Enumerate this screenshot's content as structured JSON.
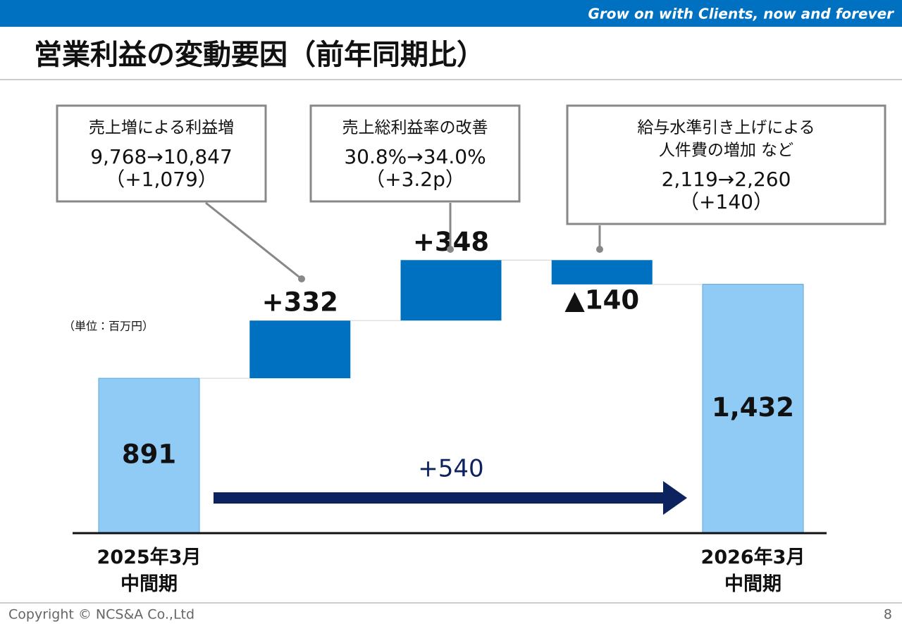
{
  "header": {
    "tagline": "Grow on with Clients, now and forever"
  },
  "chart_data": {
    "type": "waterfall",
    "title": "営業利益の変動要因（前年同期比）",
    "unit_label": "（単位：百万円）",
    "categories": [
      "2025年3月\n中間期",
      null,
      null,
      null,
      "2026年3月\n中間期"
    ],
    "values": [
      891,
      332,
      348,
      -140,
      1432
    ],
    "value_labels": [
      "891",
      "+332",
      "+348",
      "▲140",
      "1,432"
    ],
    "totals": [
      true,
      false,
      false,
      false,
      true
    ],
    "total_color": "#8fcbf5",
    "change_color": "#0070c0",
    "ylim": [
      0,
      2500
    ],
    "difference_label": "+540",
    "callouts": [
      {
        "bar": 1,
        "lines": [
          "売上増による利益増",
          "9,768→10,847",
          "（+1,079）"
        ]
      },
      {
        "bar": 2,
        "lines": [
          "売上総利益率の改善",
          "30.8%→34.0%",
          "（+3.2p）"
        ]
      },
      {
        "bar": 3,
        "lines": [
          "給与水準引き上げによる",
          "人件費の増加 など",
          "2,119→2,260",
          "（+140）"
        ]
      }
    ]
  },
  "footer": {
    "copyright": "Copyright © NCS&A Co.,Ltd",
    "page": "8"
  }
}
